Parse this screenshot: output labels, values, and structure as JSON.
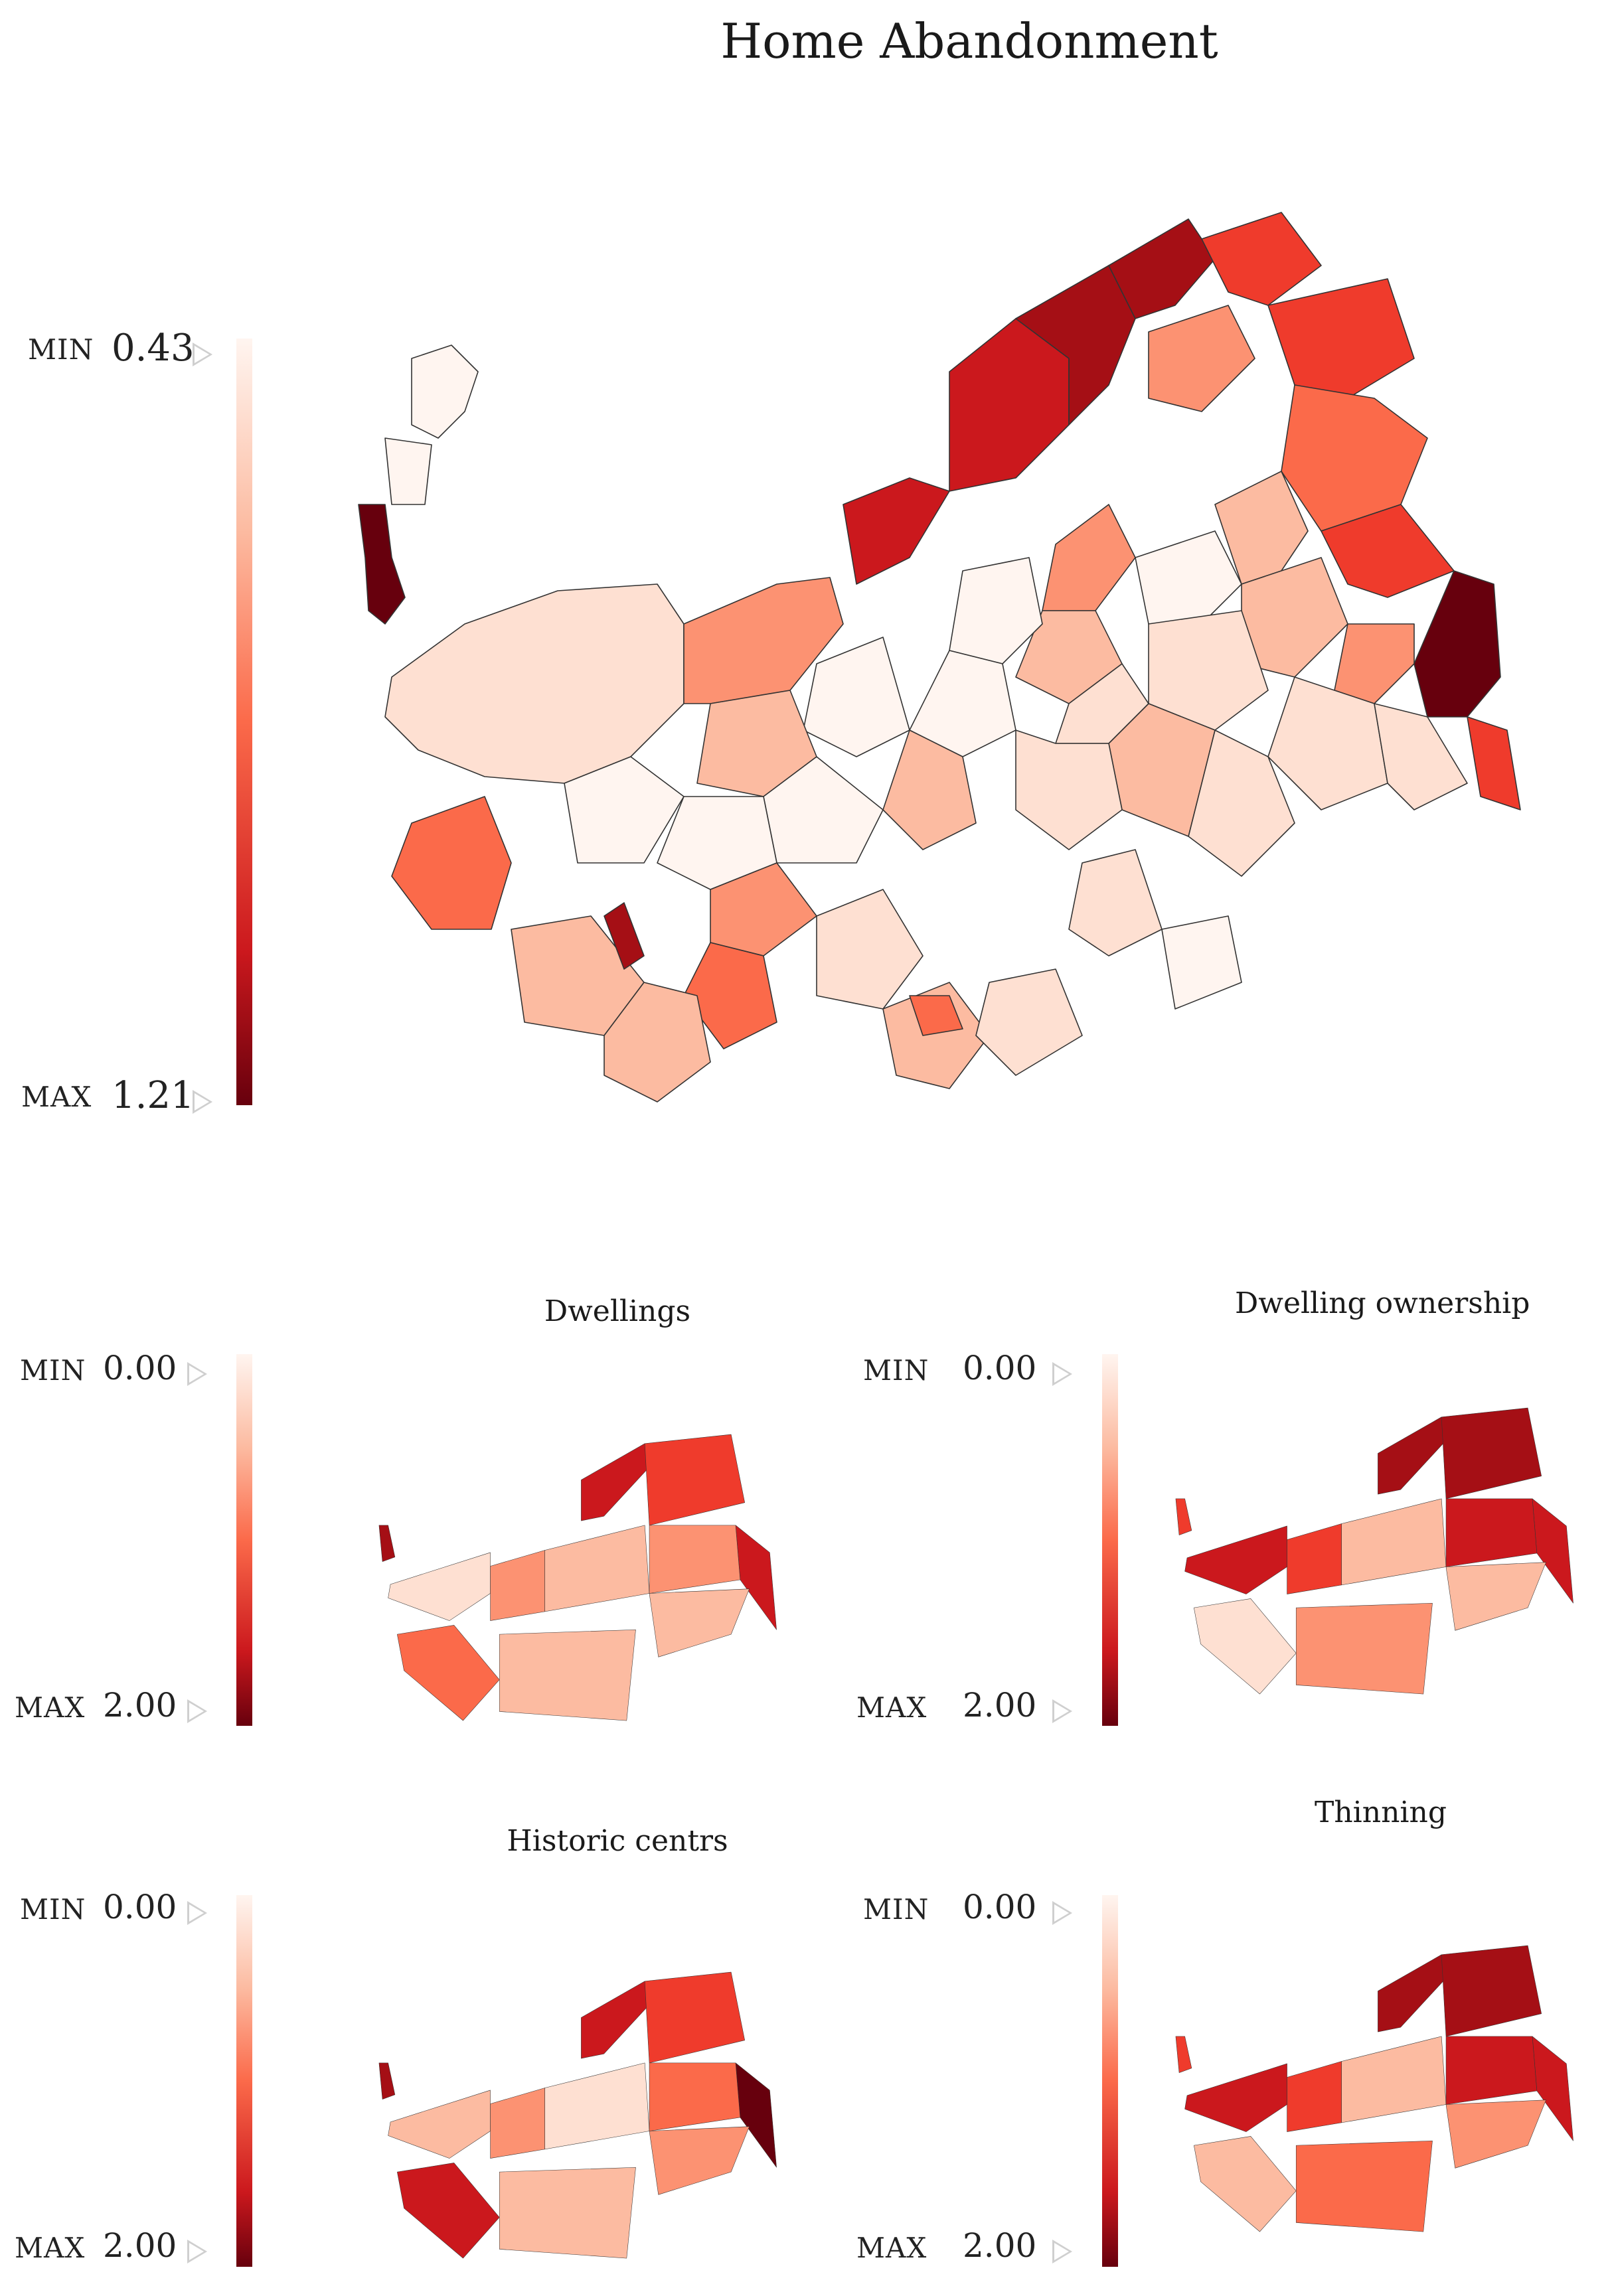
{
  "main": {
    "title": "Home Abandonment",
    "legend": {
      "min_key": "MIN",
      "min_value": "0.43",
      "max_key": "MAX",
      "max_value": "1.21"
    }
  },
  "panels": [
    {
      "title": "Dwellings",
      "legend": {
        "min_key": "MIN",
        "min_value": "0.00",
        "max_key": "MAX",
        "max_value": "2.00"
      }
    },
    {
      "title": "Dwelling ownership",
      "legend": {
        "min_key": "MIN",
        "min_value": "0.00",
        "max_key": "MAX",
        "max_value": "2.00"
      }
    },
    {
      "title": "Historic centrs",
      "legend": {
        "min_key": "MIN",
        "min_value": "0.00",
        "max_key": "MAX",
        "max_value": "2.00"
      }
    },
    {
      "title": "Thinning",
      "legend": {
        "min_key": "MIN",
        "min_value": "0.00",
        "max_key": "MAX",
        "max_value": "2.00"
      }
    }
  ],
  "colors": {
    "scale": [
      "#fff5f0",
      "#fee0d2",
      "#fcbba1",
      "#fc9272",
      "#fb6a4a",
      "#ef3b2c",
      "#cb181d",
      "#a50f15",
      "#67000d"
    ],
    "border": "#333333"
  }
}
